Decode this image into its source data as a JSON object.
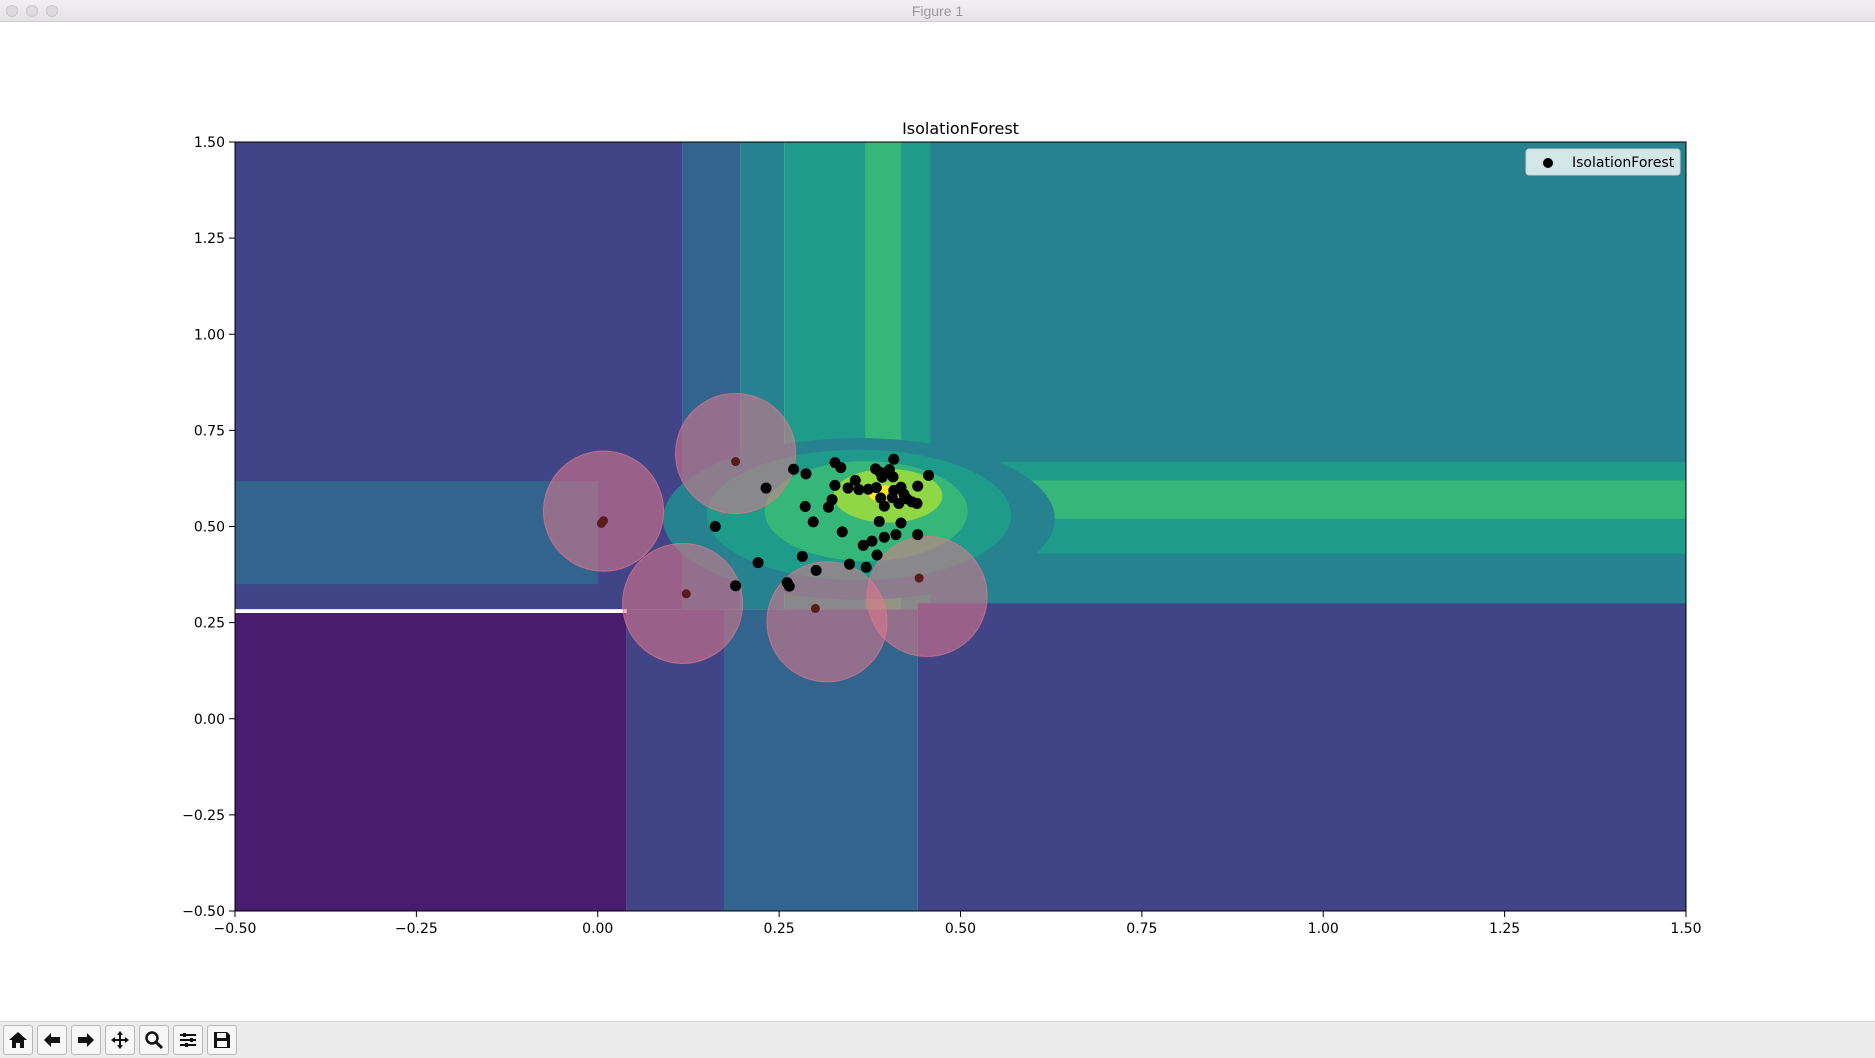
{
  "window": {
    "title": "Figure 1"
  },
  "toolbar": {
    "buttons": [
      {
        "name": "home-icon"
      },
      {
        "name": "back-arrow-icon"
      },
      {
        "name": "forward-arrow-icon"
      },
      {
        "name": "pan-move-icon"
      },
      {
        "name": "zoom-magnifier-icon"
      },
      {
        "name": "configure-subplots-icon"
      },
      {
        "name": "save-figure-icon"
      }
    ]
  },
  "colors": {
    "level_0": "#481c6e",
    "level_1": "#414487",
    "level_2": "#32648e",
    "level_3": "#25828e",
    "level_4": "#1e9b8a",
    "level_5": "#35b779",
    "level_6": "#8fd744",
    "level_7": "#fde725",
    "points": "#000000",
    "outlier_circle": "#e1788c"
  },
  "chart_data": {
    "type": "scatter",
    "title": "IsolationForest",
    "xlabel": "",
    "ylabel": "",
    "xlim": [
      -0.5,
      1.5
    ],
    "ylim": [
      -0.5,
      1.5
    ],
    "xticks": [
      "−0.50",
      "−0.25",
      "0.00",
      "0.25",
      "0.50",
      "0.75",
      "1.00",
      "1.25",
      "1.50"
    ],
    "yticks": [
      "−0.50",
      "−0.25",
      "0.00",
      "0.25",
      "0.50",
      "0.75",
      "1.00",
      "1.25",
      "1.50"
    ],
    "grid": false,
    "legend": {
      "placement": "top-right",
      "entries": [
        "IsolationForest"
      ]
    },
    "series": [
      {
        "name": "IsolationForest",
        "points": [
          [
            0.327,
            0.666
          ],
          [
            0.335,
            0.653
          ],
          [
            0.408,
            0.675
          ],
          [
            0.27,
            0.649
          ],
          [
            0.287,
            0.637
          ],
          [
            0.383,
            0.65
          ],
          [
            0.389,
            0.641
          ],
          [
            0.402,
            0.648
          ],
          [
            0.392,
            0.628
          ],
          [
            0.407,
            0.629
          ],
          [
            0.456,
            0.633
          ],
          [
            0.355,
            0.62
          ],
          [
            0.327,
            0.607
          ],
          [
            0.345,
            0.6
          ],
          [
            0.373,
            0.597
          ],
          [
            0.384,
            0.601
          ],
          [
            0.408,
            0.594
          ],
          [
            0.418,
            0.602
          ],
          [
            0.441,
            0.605
          ],
          [
            0.422,
            0.584
          ],
          [
            0.39,
            0.574
          ],
          [
            0.406,
            0.575
          ],
          [
            0.426,
            0.572
          ],
          [
            0.433,
            0.564
          ],
          [
            0.44,
            0.56
          ],
          [
            0.395,
            0.553
          ],
          [
            0.323,
            0.57
          ],
          [
            0.318,
            0.55
          ],
          [
            0.286,
            0.552
          ],
          [
            0.232,
            0.6
          ],
          [
            0.297,
            0.512
          ],
          [
            0.388,
            0.513
          ],
          [
            0.418,
            0.509
          ],
          [
            0.337,
            0.486
          ],
          [
            0.162,
            0.5
          ],
          [
            0.411,
            0.479
          ],
          [
            0.441,
            0.479
          ],
          [
            0.395,
            0.472
          ],
          [
            0.378,
            0.462
          ],
          [
            0.366,
            0.451
          ],
          [
            0.385,
            0.426
          ],
          [
            0.282,
            0.422
          ],
          [
            0.221,
            0.406
          ],
          [
            0.347,
            0.402
          ],
          [
            0.37,
            0.394
          ],
          [
            0.301,
            0.386
          ],
          [
            0.19,
            0.346
          ],
          [
            0.261,
            0.354
          ],
          [
            0.264,
            0.345
          ],
          [
            0.4,
            0.64
          ],
          [
            0.415,
            0.56
          ],
          [
            0.36,
            0.596
          ]
        ]
      }
    ],
    "outliers": [
      [
        0.19,
        0.669
      ],
      [
        0.008,
        0.515
      ],
      [
        0.005,
        0.508
      ],
      [
        0.122,
        0.325
      ],
      [
        0.3,
        0.287
      ],
      [
        0.443,
        0.366
      ]
    ],
    "outlier_circles": [
      {
        "center": [
          0.19,
          0.69
        ],
        "radius": 0.092
      },
      {
        "center": [
          0.008,
          0.54
        ],
        "radius": 0.092
      },
      {
        "center": [
          0.117,
          0.3
        ],
        "radius": 0.092
      },
      {
        "center": [
          0.316,
          0.252
        ],
        "radius": 0.092
      },
      {
        "center": [
          0.454,
          0.318
        ],
        "radius": 0.092
      }
    ],
    "contour_regions": [
      {
        "level": 1,
        "x": [
          -0.5,
          0.117
        ],
        "y": [
          0.285,
          1.5
        ]
      },
      {
        "level": 2,
        "x": [
          0.117,
          0.197
        ],
        "y": [
          0.285,
          1.5
        ]
      },
      {
        "level": 3,
        "x": [
          0.197,
          0.257
        ],
        "y": [
          0.285,
          1.5
        ]
      },
      {
        "level": 4,
        "x": [
          0.257,
          0.369
        ],
        "y": [
          0.285,
          1.5
        ]
      },
      {
        "level": 5,
        "x": [
          0.369,
          0.418
        ],
        "y": [
          0.285,
          1.5
        ]
      },
      {
        "level": 4,
        "x": [
          0.418,
          0.458
        ],
        "y": [
          0.285,
          1.5
        ]
      },
      {
        "level": 3,
        "x": [
          0.458,
          1.5
        ],
        "y": [
          0.285,
          1.5
        ]
      },
      {
        "level": 0,
        "x": [
          -0.5,
          0.04
        ],
        "y": [
          -0.5,
          0.275
        ]
      },
      {
        "level": 1,
        "x": [
          0.04,
          0.174
        ],
        "y": [
          -0.5,
          0.285
        ]
      },
      {
        "level": 2,
        "x": [
          0.174,
          0.441
        ],
        "y": [
          -0.5,
          0.285
        ]
      },
      {
        "level": 1,
        "x": [
          0.441,
          1.5
        ],
        "y": [
          -0.5,
          0.3
        ]
      },
      {
        "level": 2,
        "x": [
          -0.5,
          0.0
        ],
        "y": [
          0.35,
          0.618
        ]
      },
      {
        "level": 3,
        "x": [
          0.458,
          1.5
        ],
        "y": [
          0.35,
          0.668
        ]
      },
      {
        "level": 4,
        "x": [
          0.458,
          1.5
        ],
        "y": [
          0.43,
          0.668
        ]
      },
      {
        "level": 5,
        "x": [
          0.458,
          1.5
        ],
        "y": [
          0.52,
          0.62
        ]
      }
    ]
  }
}
